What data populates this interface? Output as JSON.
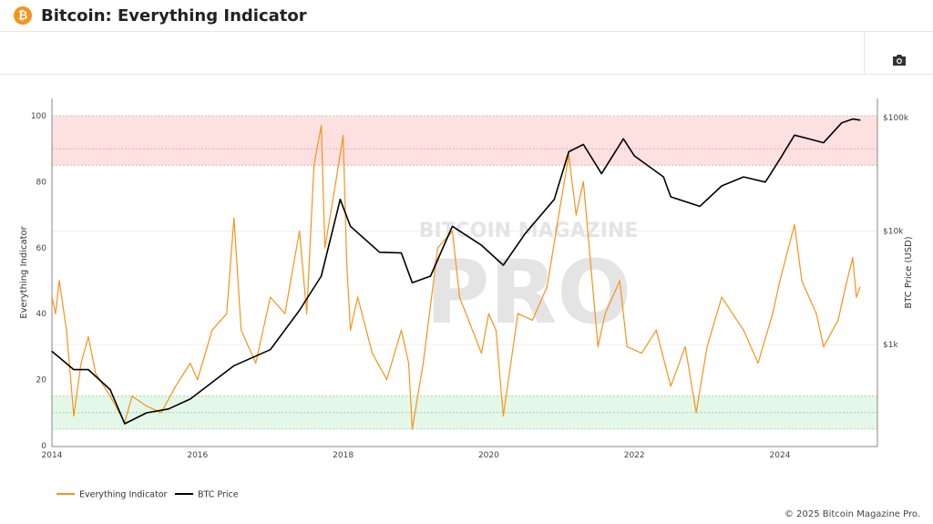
{
  "header": {
    "title": "Bitcoin: Everything Indicator",
    "logo_glyph": "₿"
  },
  "toolbar": {
    "icon": "camera-icon"
  },
  "footer": {
    "copyright": "© 2025 Bitcoin Magazine Pro."
  },
  "watermark": {
    "line1": "BITCOIN MAGAZINE",
    "line2": "PRO"
  },
  "chart_data": {
    "type": "line",
    "title": "",
    "xlabel": "",
    "ylabel": "Everything Indicator",
    "y2label": "BTC Price (USD)",
    "xlim": [
      2014,
      2025.25
    ],
    "ylim": [
      0,
      105
    ],
    "y2_scale": "log",
    "y2_ticks": [
      "$1k",
      "$10k",
      "$100k"
    ],
    "y2_tick_values": [
      1000,
      10000,
      100000
    ],
    "x_ticks": [
      "2014",
      "2016",
      "2018",
      "2020",
      "2022",
      "2024"
    ],
    "y_ticks": [
      "0",
      "20",
      "40",
      "60",
      "80",
      "100"
    ],
    "bands": [
      {
        "from": 85,
        "to": 100,
        "color": "#fde0e0",
        "lines": [
          85,
          90,
          100
        ]
      },
      {
        "from": 5,
        "to": 15,
        "color": "#e3f8e8",
        "lines": [
          5,
          10,
          15
        ]
      }
    ],
    "legend_position": "bottom-left",
    "series": [
      {
        "name": "Everything Indicator",
        "color": "#f7931a",
        "axis": "left",
        "x": [
          2014.0,
          2014.05,
          2014.1,
          2014.2,
          2014.3,
          2014.4,
          2014.5,
          2014.6,
          2014.8,
          2015.0,
          2015.1,
          2015.3,
          2015.5,
          2015.7,
          2015.9,
          2016.0,
          2016.2,
          2016.4,
          2016.5,
          2016.6,
          2016.8,
          2017.0,
          2017.2,
          2017.4,
          2017.5,
          2017.6,
          2017.7,
          2017.75,
          2017.9,
          2018.0,
          2018.05,
          2018.1,
          2018.2,
          2018.4,
          2018.6,
          2018.8,
          2018.9,
          2018.95,
          2019.1,
          2019.3,
          2019.5,
          2019.6,
          2019.9,
          2020.0,
          2020.1,
          2020.2,
          2020.4,
          2020.6,
          2020.8,
          2021.0,
          2021.1,
          2021.2,
          2021.3,
          2021.5,
          2021.6,
          2021.8,
          2021.9,
          2022.1,
          2022.3,
          2022.5,
          2022.7,
          2022.85,
          2023.0,
          2023.2,
          2023.5,
          2023.7,
          2023.9,
          2024.0,
          2024.2,
          2024.3,
          2024.5,
          2024.6,
          2024.8,
          2024.9,
          2025.0,
          2025.05,
          2025.1
        ],
        "y": [
          45,
          40,
          50,
          35,
          9,
          25,
          33,
          22,
          15,
          7,
          15,
          12,
          10,
          18,
          25,
          20,
          35,
          40,
          69,
          35,
          25,
          45,
          40,
          65,
          40,
          85,
          97,
          60,
          80,
          94,
          55,
          35,
          45,
          28,
          20,
          35,
          25,
          5,
          25,
          60,
          65,
          45,
          28,
          40,
          35,
          9,
          40,
          38,
          48,
          75,
          88,
          70,
          80,
          30,
          40,
          50,
          30,
          28,
          35,
          18,
          30,
          10,
          30,
          45,
          35,
          25,
          40,
          50,
          67,
          50,
          40,
          30,
          38,
          48,
          57,
          45,
          48
        ]
      },
      {
        "name": "BTC Price",
        "color": "#000000",
        "axis": "right",
        "x": [
          2014.0,
          2014.3,
          2014.5,
          2014.8,
          2015.0,
          2015.3,
          2015.6,
          2015.9,
          2016.5,
          2017.0,
          2017.4,
          2017.7,
          2017.96,
          2018.1,
          2018.5,
          2018.8,
          2018.95,
          2019.2,
          2019.5,
          2019.9,
          2020.2,
          2020.5,
          2020.9,
          2021.1,
          2021.3,
          2021.55,
          2021.85,
          2022.0,
          2022.4,
          2022.5,
          2022.9,
          2023.2,
          2023.5,
          2023.8,
          2024.0,
          2024.2,
          2024.6,
          2024.85,
          2025.0,
          2025.1
        ],
        "y": [
          870,
          600,
          600,
          400,
          200,
          250,
          270,
          330,
          650,
          900,
          2000,
          4000,
          19000,
          11000,
          6500,
          6400,
          3500,
          4000,
          11000,
          7500,
          5000,
          9500,
          19000,
          50000,
          58000,
          32000,
          65000,
          46000,
          30000,
          20000,
          16500,
          25000,
          30000,
          27000,
          43000,
          70000,
          60000,
          90000,
          97000,
          95000
        ]
      }
    ]
  }
}
